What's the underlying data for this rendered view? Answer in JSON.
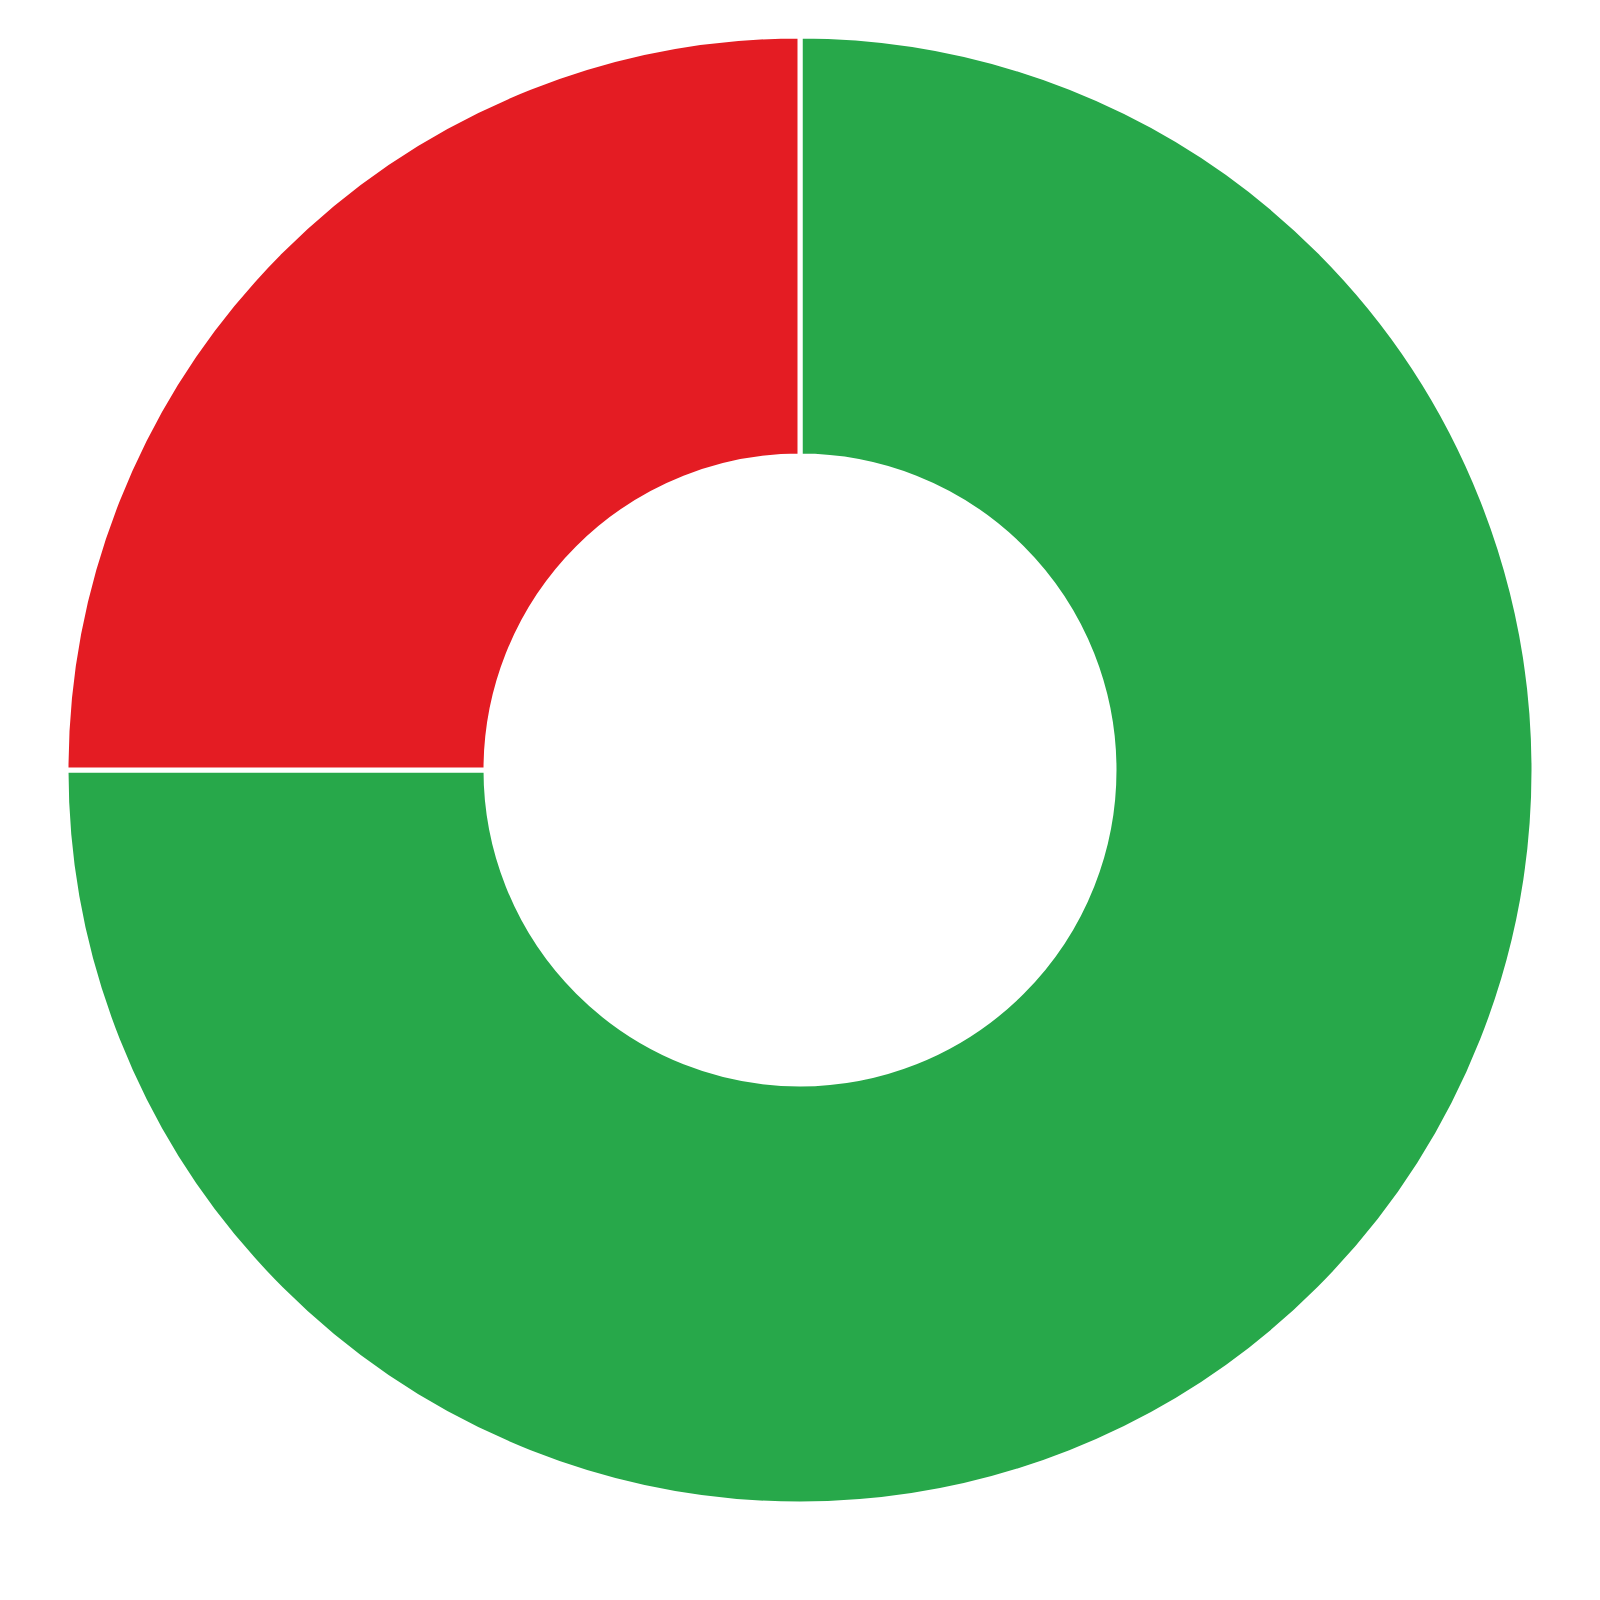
{
  "chart_data": {
    "type": "donut",
    "categories": [
      null,
      null
    ],
    "values": [
      75,
      25
    ],
    "colors": [
      "#27a84a",
      "#e41c23"
    ]
  }
}
